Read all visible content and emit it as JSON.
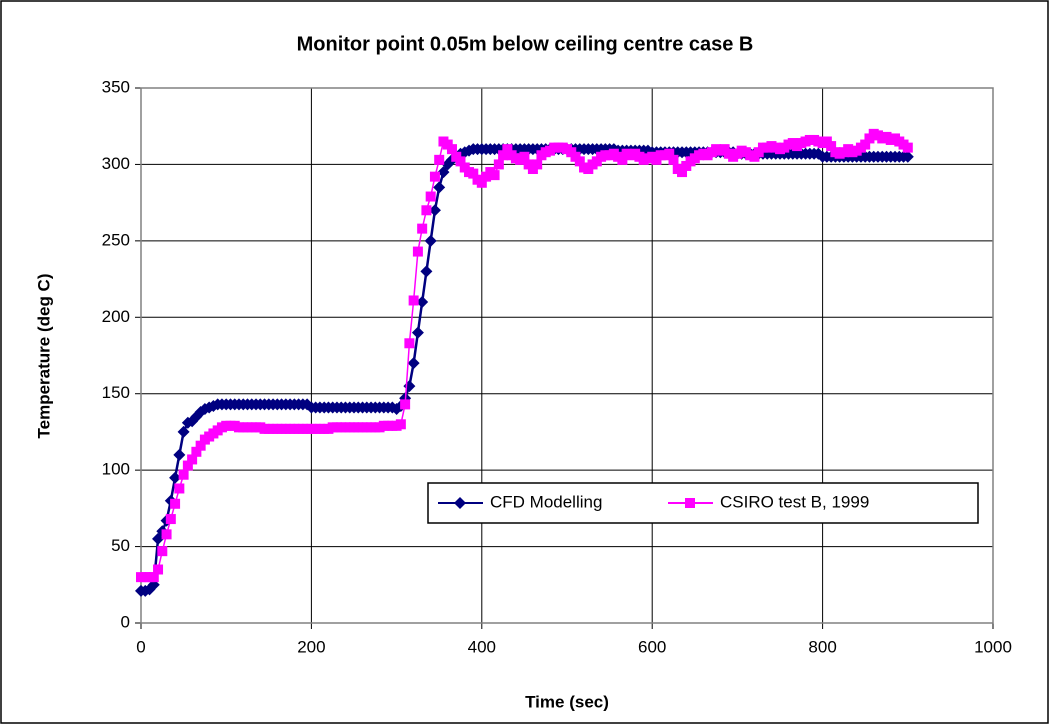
{
  "chart_data": {
    "type": "line",
    "title": "Monitor point 0.05m below ceiling centre case B",
    "x_label": "Time (sec)",
    "y_label": "Temperature (deg C)",
    "x": [
      0,
      5,
      10,
      15,
      20,
      25,
      30,
      35,
      40,
      45,
      50,
      55,
      60,
      65,
      70,
      75,
      80,
      85,
      90,
      95,
      100,
      105,
      110,
      115,
      120,
      125,
      130,
      135,
      140,
      145,
      150,
      155,
      160,
      165,
      170,
      175,
      180,
      185,
      190,
      195,
      200,
      205,
      210,
      215,
      220,
      225,
      230,
      235,
      240,
      245,
      250,
      255,
      260,
      265,
      270,
      275,
      280,
      285,
      290,
      295,
      300,
      305,
      310,
      315,
      320,
      325,
      330,
      335,
      340,
      345,
      350,
      355,
      360,
      365,
      370,
      375,
      380,
      385,
      390,
      395,
      400,
      405,
      410,
      415,
      420,
      425,
      430,
      435,
      440,
      445,
      450,
      455,
      460,
      465,
      470,
      475,
      480,
      485,
      490,
      495,
      500,
      505,
      510,
      515,
      520,
      525,
      530,
      535,
      540,
      545,
      550,
      555,
      560,
      565,
      570,
      575,
      580,
      585,
      590,
      595,
      600,
      605,
      610,
      615,
      620,
      625,
      630,
      635,
      640,
      645,
      650,
      655,
      660,
      665,
      670,
      675,
      680,
      685,
      690,
      695,
      700,
      705,
      710,
      715,
      720,
      725,
      730,
      735,
      740,
      745,
      750,
      755,
      760,
      765,
      770,
      775,
      780,
      785,
      790,
      795,
      800,
      805,
      810,
      815,
      820,
      825,
      830,
      835,
      840,
      845,
      850,
      855,
      860,
      865,
      870,
      875,
      880,
      885,
      890,
      895,
      900
    ],
    "series": [
      {
        "name": "CFD Modelling",
        "color": "#000080",
        "marker": "diamond",
        "values": [
          21,
          21,
          22,
          25,
          55,
          60,
          67,
          80,
          95,
          110,
          125,
          131,
          132,
          135,
          138,
          140,
          141,
          142,
          143,
          143,
          143,
          143,
          143,
          143,
          143,
          143,
          143,
          143,
          143,
          143,
          143,
          143,
          143,
          143,
          143,
          143,
          143,
          143,
          143,
          143,
          141,
          141,
          141,
          141,
          141,
          141,
          141,
          141,
          141,
          141,
          141,
          141,
          141,
          141,
          141,
          141,
          141,
          141,
          141,
          141,
          140,
          142,
          147,
          155,
          170,
          190,
          210,
          230,
          250,
          270,
          285,
          295,
          300,
          303,
          305,
          307,
          308,
          309,
          310,
          310,
          310,
          310,
          310,
          310,
          310,
          310,
          310,
          310,
          310,
          310,
          310,
          310,
          310,
          310,
          310,
          310,
          310,
          310,
          310,
          310,
          310,
          310,
          310,
          310,
          310,
          310,
          310,
          310,
          310,
          310,
          310,
          310,
          309,
          309,
          309,
          309,
          309,
          309,
          309,
          309,
          308,
          308,
          308,
          308,
          308,
          308,
          308,
          308,
          308,
          308,
          308,
          308,
          308,
          308,
          308,
          308,
          308,
          308,
          308,
          308,
          307,
          307,
          307,
          307,
          307,
          307,
          307,
          307,
          307,
          307,
          307,
          307,
          307,
          307,
          307,
          307,
          307,
          307,
          307,
          307,
          305,
          305,
          305,
          305,
          305,
          305,
          305,
          305,
          305,
          305,
          305,
          305,
          305,
          305,
          305,
          305,
          305,
          305,
          305,
          305,
          305
        ]
      },
      {
        "name": "CSIRO test B, 1999",
        "color": "#FF00FF",
        "marker": "square",
        "values": [
          30,
          30,
          30,
          30,
          35,
          47,
          58,
          68,
          78,
          88,
          97,
          103,
          107,
          112,
          116,
          120,
          122,
          124,
          126,
          128,
          129,
          129,
          129,
          128,
          128,
          128,
          128,
          128,
          128,
          127,
          127,
          127,
          127,
          127,
          127,
          127,
          127,
          127,
          127,
          127,
          127,
          127,
          127,
          127,
          127,
          128,
          128,
          128,
          128,
          128,
          128,
          128,
          128,
          128,
          128,
          128,
          128,
          129,
          129,
          129,
          129,
          130,
          143,
          183,
          211,
          243,
          258,
          270,
          279,
          292,
          303,
          315,
          313,
          310,
          305,
          302,
          298,
          295,
          294,
          290,
          288,
          292,
          295,
          293,
          300,
          306,
          310,
          306,
          304,
          303,
          305,
          300,
          297,
          300,
          306,
          308,
          309,
          311,
          311,
          311,
          310,
          308,
          305,
          302,
          298,
          297,
          300,
          302,
          305,
          306,
          306,
          307,
          305,
          303,
          307,
          306,
          307,
          305,
          303,
          304,
          305,
          303,
          306,
          306,
          307,
          303,
          297,
          295,
          299,
          302,
          304,
          306,
          307,
          306,
          308,
          310,
          309,
          310,
          307,
          305,
          307,
          309,
          308,
          306,
          305,
          308,
          311,
          311,
          312,
          311,
          310,
          311,
          313,
          314,
          312,
          314,
          315,
          316,
          316,
          315,
          314,
          315,
          312,
          308,
          307,
          308,
          310,
          308,
          309,
          311,
          313,
          317,
          320,
          319,
          317,
          318,
          316,
          317,
          315,
          313,
          311
        ]
      }
    ],
    "xlim": [
      0,
      1000
    ],
    "xticks": [
      0,
      200,
      400,
      600,
      800,
      1000
    ],
    "ylim": [
      0,
      350
    ],
    "yticks": [
      0,
      50,
      100,
      150,
      200,
      250,
      300,
      350
    ],
    "grid": true,
    "legend": "lower right"
  }
}
